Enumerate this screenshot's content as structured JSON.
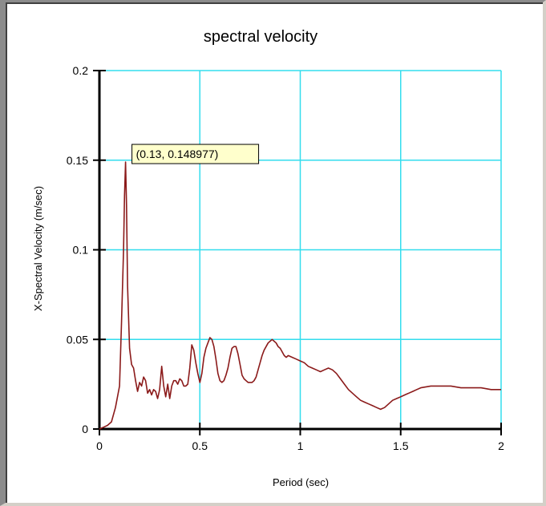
{
  "chart_data": {
    "type": "line",
    "title": "spectral velocity",
    "xlabel": "Period (sec)",
    "ylabel": "X-Spectral Velocity (m/sec)",
    "xlim": [
      0,
      2
    ],
    "ylim": [
      0,
      0.2
    ],
    "grid": true,
    "x_ticks": [
      0,
      0.5,
      1,
      1.5,
      2
    ],
    "x_tick_labels": [
      "0",
      "0.5",
      "1",
      "1.5",
      "2"
    ],
    "y_ticks": [
      0,
      0.05,
      0.1,
      0.15,
      0.2
    ],
    "y_tick_labels": [
      "0",
      "0.05",
      "0.1",
      "0.15",
      "0.2"
    ],
    "colors": {
      "grid": "#33ddee",
      "series": "#8b1a1a",
      "tooltip_bg": "#ffffcc"
    },
    "series": [
      {
        "x": [
          0,
          0.02,
          0.04,
          0.06,
          0.08,
          0.1,
          0.11,
          0.12,
          0.125,
          0.13,
          0.135,
          0.14,
          0.15,
          0.16,
          0.17,
          0.18,
          0.19,
          0.2,
          0.21,
          0.22,
          0.23,
          0.24,
          0.25,
          0.26,
          0.27,
          0.28,
          0.29,
          0.3,
          0.31,
          0.32,
          0.33,
          0.34,
          0.35,
          0.36,
          0.37,
          0.38,
          0.39,
          0.4,
          0.41,
          0.42,
          0.43,
          0.44,
          0.45,
          0.46,
          0.47,
          0.48,
          0.49,
          0.5,
          0.51,
          0.52,
          0.53,
          0.54,
          0.55,
          0.56,
          0.57,
          0.58,
          0.59,
          0.6,
          0.61,
          0.62,
          0.63,
          0.64,
          0.65,
          0.66,
          0.67,
          0.68,
          0.69,
          0.7,
          0.71,
          0.72,
          0.73,
          0.74,
          0.75,
          0.76,
          0.77,
          0.78,
          0.79,
          0.8,
          0.81,
          0.82,
          0.83,
          0.84,
          0.85,
          0.86,
          0.87,
          0.88,
          0.89,
          0.9,
          0.91,
          0.92,
          0.93,
          0.94,
          0.96,
          0.98,
          1.0,
          1.02,
          1.04,
          1.06,
          1.08,
          1.1,
          1.12,
          1.14,
          1.16,
          1.18,
          1.2,
          1.22,
          1.24,
          1.26,
          1.28,
          1.3,
          1.32,
          1.34,
          1.36,
          1.38,
          1.4,
          1.42,
          1.44,
          1.46,
          1.48,
          1.5,
          1.52,
          1.54,
          1.56,
          1.58,
          1.6,
          1.65,
          1.7,
          1.75,
          1.8,
          1.85,
          1.9,
          1.95,
          2.0
        ],
        "y": [
          0,
          0.001,
          0.002,
          0.004,
          0.012,
          0.024,
          0.06,
          0.1,
          0.13,
          0.149,
          0.125,
          0.08,
          0.045,
          0.036,
          0.034,
          0.027,
          0.021,
          0.026,
          0.024,
          0.029,
          0.027,
          0.02,
          0.022,
          0.019,
          0.022,
          0.021,
          0.017,
          0.022,
          0.035,
          0.024,
          0.018,
          0.025,
          0.017,
          0.024,
          0.027,
          0.027,
          0.025,
          0.028,
          0.027,
          0.024,
          0.024,
          0.025,
          0.034,
          0.047,
          0.044,
          0.037,
          0.031,
          0.026,
          0.031,
          0.04,
          0.045,
          0.048,
          0.051,
          0.05,
          0.046,
          0.039,
          0.031,
          0.027,
          0.026,
          0.027,
          0.03,
          0.034,
          0.04,
          0.045,
          0.046,
          0.046,
          0.042,
          0.036,
          0.03,
          0.028,
          0.027,
          0.026,
          0.026,
          0.026,
          0.027,
          0.029,
          0.033,
          0.037,
          0.041,
          0.044,
          0.046,
          0.048,
          0.049,
          0.05,
          0.049,
          0.048,
          0.046,
          0.045,
          0.043,
          0.041,
          0.04,
          0.041,
          0.04,
          0.039,
          0.038,
          0.037,
          0.035,
          0.034,
          0.033,
          0.032,
          0.033,
          0.034,
          0.033,
          0.031,
          0.028,
          0.025,
          0.022,
          0.02,
          0.018,
          0.016,
          0.015,
          0.014,
          0.013,
          0.012,
          0.011,
          0.012,
          0.014,
          0.016,
          0.017,
          0.018,
          0.019,
          0.02,
          0.021,
          0.022,
          0.023,
          0.024,
          0.024,
          0.024,
          0.023,
          0.023,
          0.023,
          0.022,
          0.022
        ]
      }
    ],
    "annotation": {
      "text": "(0.13,  0.148977)",
      "x": 0.13,
      "y": 0.148977
    }
  }
}
